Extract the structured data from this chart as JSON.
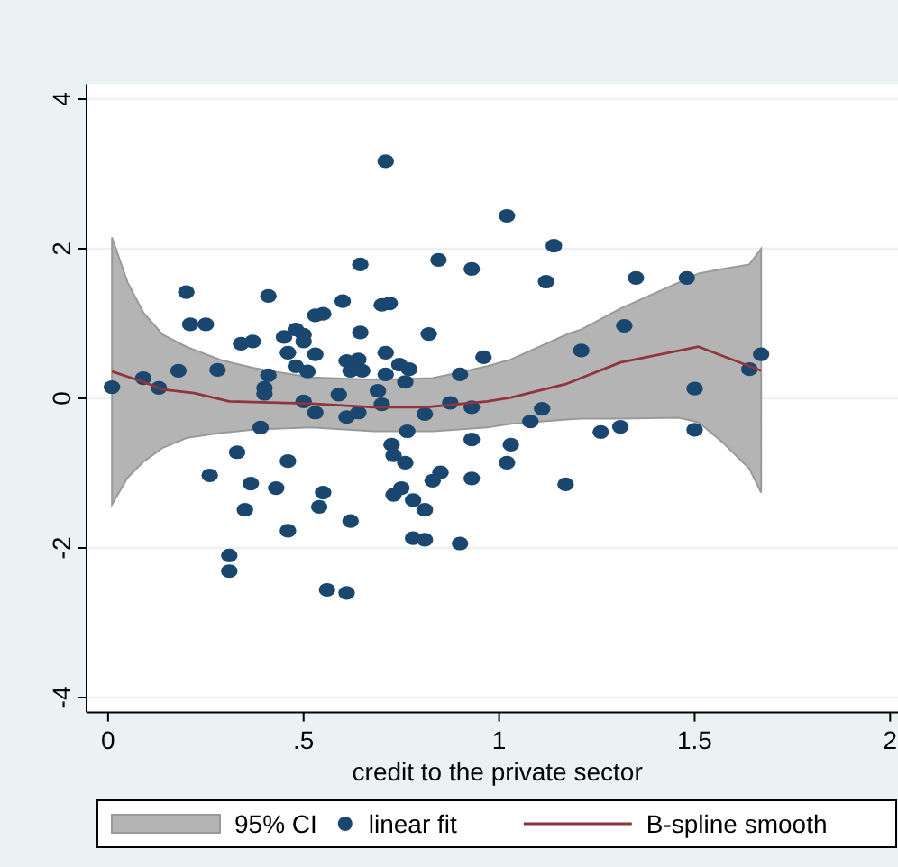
{
  "chart_data": {
    "type": "scatter",
    "xlabel": "credit to the private sector",
    "xlim": [
      -0.055,
      2.02
    ],
    "xticks": [
      0,
      {
        "value": 0.5,
        "label": ".5"
      },
      1,
      1.5,
      2
    ],
    "ylim": [
      -4.2,
      4.2
    ],
    "yticks": [
      -4,
      -2,
      0,
      2,
      4
    ],
    "grid": "y",
    "legend": "bottom",
    "marker": "circle",
    "series": [
      {
        "name": "95% CI",
        "type": "area",
        "color": "#b4b4b4",
        "x": [
          0.01,
          0.05,
          0.09,
          0.14,
          0.2,
          0.21,
          0.29,
          0.37,
          0.41,
          0.52,
          0.68,
          0.83,
          0.97,
          1.03,
          1.18,
          1.21,
          1.31,
          1.46,
          1.51,
          1.57,
          1.64,
          1.67
        ],
        "values": [
          null,
          null,
          null,
          null,
          null,
          null,
          null,
          null,
          null,
          null,
          null,
          null,
          null,
          null,
          null,
          null,
          null,
          null,
          null,
          null,
          null,
          null
        ],
        "lower": [
          -1.42,
          -1.06,
          -0.85,
          -0.66,
          -0.53,
          -0.52,
          -0.46,
          -0.42,
          -0.41,
          -0.39,
          -0.44,
          -0.44,
          -0.39,
          -0.34,
          -0.28,
          -0.27,
          -0.27,
          -0.26,
          -0.32,
          -0.58,
          -0.94,
          -1.26
        ],
        "upper": [
          2.15,
          1.55,
          1.15,
          0.85,
          0.69,
          0.67,
          0.51,
          0.41,
          0.37,
          0.28,
          0.25,
          0.27,
          0.43,
          0.52,
          0.87,
          0.92,
          1.2,
          1.55,
          1.67,
          1.73,
          1.79,
          2.0
        ]
      },
      {
        "name": "linear fit",
        "color": "#1a476f",
        "x": [
          0.71,
          0.645,
          0.845,
          0.93,
          0.2,
          0.41,
          0.6,
          0.7,
          0.72,
          0.21,
          0.25,
          0.53,
          0.55,
          0.34,
          0.37,
          0.45,
          0.48,
          0.5,
          0.5,
          0.645,
          0.82,
          0.46,
          0.53,
          0.71,
          0.18,
          0.28,
          0.48,
          0.51,
          0.61,
          0.64,
          0.65,
          0.62,
          0.745,
          0.77,
          0.71,
          0.9,
          0.96,
          0.09,
          0.01,
          0.13,
          0.41,
          0.76,
          0.69,
          0.59,
          0.4,
          0.4,
          0.5,
          0.53,
          0.61,
          0.64,
          0.7,
          0.875,
          0.93,
          0.39,
          0.33,
          0.46,
          0.26,
          0.365,
          0.43,
          0.35,
          0.46,
          0.55,
          0.54,
          0.62,
          0.31,
          0.31,
          0.56,
          0.61,
          0.765,
          0.81,
          0.725,
          0.73,
          0.76,
          0.85,
          0.83,
          0.75,
          0.73,
          0.78,
          0.81,
          0.78,
          0.81,
          0.9,
          0.93,
          0.93,
          1.03,
          1.02,
          1.08,
          1.11,
          1.17,
          1.26,
          1.31,
          1.5,
          1.5,
          1.64,
          1.02,
          1.14,
          1.12,
          1.35,
          1.48,
          1.32,
          1.21,
          1.67
        ],
        "values": [
          3.17,
          1.79,
          1.85,
          1.73,
          1.42,
          1.37,
          1.3,
          1.25,
          1.27,
          0.99,
          0.99,
          1.11,
          1.13,
          0.73,
          0.76,
          0.82,
          0.92,
          0.85,
          0.76,
          0.88,
          0.86,
          0.61,
          0.59,
          0.61,
          0.37,
          0.38,
          0.43,
          0.36,
          0.5,
          0.52,
          0.37,
          0.37,
          0.45,
          0.39,
          0.32,
          0.32,
          0.55,
          0.27,
          0.15,
          0.14,
          0.31,
          0.22,
          0.1,
          0.05,
          0.14,
          0.06,
          -0.04,
          -0.19,
          -0.25,
          -0.19,
          -0.08,
          -0.06,
          -0.12,
          -0.39,
          -0.72,
          -0.84,
          -1.03,
          -1.14,
          -1.2,
          -1.49,
          -1.77,
          -1.26,
          -1.45,
          -1.64,
          -2.1,
          -2.31,
          -2.56,
          -2.6,
          -0.44,
          -0.21,
          -0.62,
          -0.76,
          -0.86,
          -0.99,
          -1.1,
          -1.2,
          -1.29,
          -1.36,
          -1.49,
          -1.87,
          -1.89,
          -1.94,
          -0.55,
          -1.07,
          -0.62,
          -0.86,
          -0.31,
          -0.14,
          -1.15,
          -0.45,
          -0.38,
          0.13,
          -0.42,
          0.39,
          2.44,
          2.04,
          1.56,
          1.61,
          1.61,
          0.97,
          0.64,
          0.59
        ]
      },
      {
        "name": "B-spline smooth",
        "type": "line",
        "color": "#90353b",
        "marker": "none",
        "x": [
          0.01,
          0.09,
          0.14,
          0.22,
          0.31,
          0.52,
          0.68,
          0.81,
          0.97,
          1.03,
          1.17,
          1.31,
          1.51,
          1.67
        ],
        "values": [
          0.36,
          0.22,
          0.12,
          0.07,
          -0.04,
          -0.07,
          -0.12,
          -0.12,
          -0.04,
          0.01,
          0.19,
          0.48,
          0.69,
          0.37
        ]
      }
    ]
  }
}
